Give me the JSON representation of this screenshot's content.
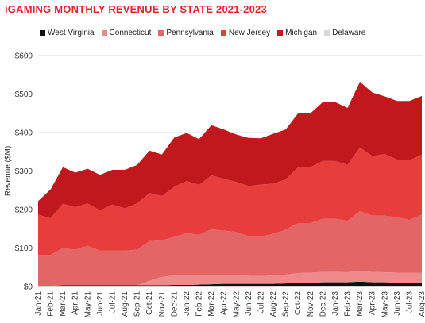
{
  "chart_data": {
    "type": "area",
    "stacked": true,
    "title": "iGAMING MONTHLY REVENUE BY STATE 2021-2023",
    "title_color": "#e0242b",
    "ylabel": "Revenue ($M)",
    "xlabel": "",
    "ylim": [
      0,
      600
    ],
    "yticks": [
      0,
      100,
      200,
      300,
      400,
      500,
      600
    ],
    "ytick_labels": [
      "$0",
      "$100",
      "$200",
      "$300",
      "$400",
      "$500",
      "$600"
    ],
    "grid": true,
    "legend_position": "top",
    "categories": [
      "Jan-21",
      "Feb-21",
      "Mar-21",
      "Apr-21",
      "May-21",
      "Jun-21",
      "Jul-21",
      "Aug-21",
      "Sep-21",
      "Oct-21",
      "Nov-21",
      "Dec-21",
      "Jan-22",
      "Feb-22",
      "Mar-22",
      "Apr-22",
      "May-22",
      "Jun-22",
      "Jul-22",
      "Aug-22",
      "Sep-22",
      "Oct-22",
      "Nov-22",
      "Dec-22",
      "Jan-23",
      "Feb-23",
      "Mar-23",
      "Apr-23",
      "May-23",
      "Jun-23",
      "Jul-23",
      "Aug-23"
    ],
    "series": [
      {
        "name": "West Virginia",
        "color": "#111111",
        "values": [
          2,
          2,
          3,
          3,
          3,
          3,
          3,
          3,
          3,
          3,
          3,
          4,
          4,
          5,
          6,
          7,
          7,
          7,
          7,
          7,
          8,
          10,
          10,
          11,
          11,
          11,
          13,
          11,
          11,
          10,
          10,
          9
        ]
      },
      {
        "name": "Connecticut",
        "color": "#f08a8a",
        "values": [
          0,
          0,
          0,
          0,
          0,
          0,
          0,
          0,
          0,
          12,
          22,
          25,
          25,
          24,
          25,
          23,
          22,
          21,
          20,
          22,
          23,
          25,
          26,
          27,
          27,
          26,
          28,
          27,
          26,
          26,
          26,
          27
        ]
      },
      {
        "name": "Pennsylvania",
        "color": "#e46565",
        "values": [
          80,
          80,
          97,
          93,
          103,
          90,
          90,
          90,
          93,
          103,
          95,
          100,
          110,
          105,
          118,
          115,
          113,
          103,
          103,
          108,
          117,
          130,
          129,
          138,
          138,
          134,
          155,
          146,
          147,
          144,
          137,
          151
        ]
      },
      {
        "name": "New Jersey",
        "color": "#e83d3d",
        "values": [
          105,
          95,
          115,
          110,
          110,
          105,
          120,
          110,
          120,
          125,
          115,
          130,
          135,
          130,
          140,
          135,
          130,
          130,
          135,
          130,
          130,
          145,
          145,
          150,
          150,
          145,
          165,
          155,
          160,
          150,
          155,
          155
        ]
      },
      {
        "name": "Michigan",
        "color": "#c0181d",
        "values": [
          35,
          75,
          95,
          90,
          90,
          92,
          90,
          100,
          100,
          110,
          108,
          128,
          125,
          119,
          130,
          128,
          123,
          125,
          120,
          130,
          130,
          140,
          140,
          153,
          153,
          148,
          171,
          165,
          150,
          152,
          154,
          153
        ]
      },
      {
        "name": "Delaware",
        "color": "#d8d8d8",
        "values": [
          0,
          0,
          0,
          0,
          0,
          0,
          0,
          0,
          0,
          0,
          0,
          0,
          0,
          0,
          0,
          0,
          0,
          0,
          0,
          0,
          0,
          0,
          0,
          0,
          0,
          0,
          0,
          0,
          0,
          0,
          0,
          0
        ]
      }
    ]
  }
}
